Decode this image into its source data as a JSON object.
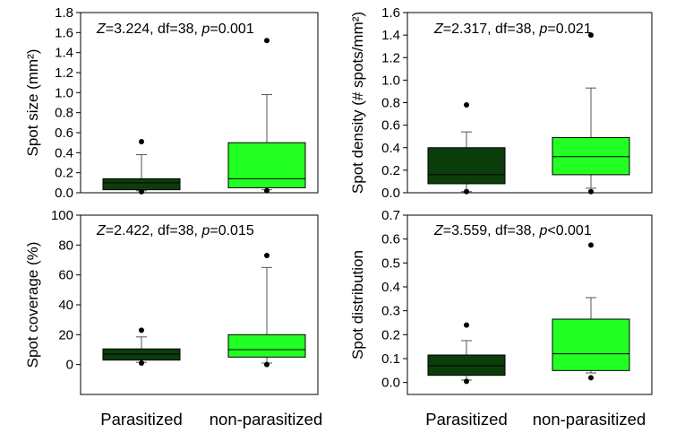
{
  "colors": {
    "parasitized": "#0b3d0b",
    "non_parasitized": "#22ff22",
    "frame": "#000000",
    "median": "#000000",
    "whisker": "#555555"
  },
  "chart_data": [
    {
      "type": "box",
      "ylabel": "Spot size (mm²)",
      "ylim": [
        0,
        1.8
      ],
      "yticks": [
        "0.0",
        "0.2",
        "0.4",
        "0.6",
        "0.8",
        "1.0",
        "1.2",
        "1.4",
        "1.6",
        "1.8"
      ],
      "stat_parts": [
        {
          "t": "Z",
          "it": true
        },
        {
          "t": "=3.224, df=38, ",
          "it": false
        },
        {
          "t": "p",
          "it": true
        },
        {
          "t": "=0.001",
          "it": false
        }
      ],
      "boxes": [
        {
          "name": "Parasitized",
          "q1": 0.03,
          "median": 0.1,
          "q3": 0.14,
          "wlo": 0.02,
          "whi": 0.38,
          "outliers": [
            0.51,
            0.01
          ]
        },
        {
          "name": "non-parasitized",
          "q1": 0.05,
          "median": 0.14,
          "q3": 0.5,
          "wlo": 0.03,
          "whi": 0.98,
          "outliers": [
            1.52,
            0.02
          ]
        }
      ]
    },
    {
      "type": "box",
      "ylabel": "Spot density (# spots/mm²)",
      "ylim": [
        0,
        1.6
      ],
      "yticks": [
        "0.0",
        "0.2",
        "0.4",
        "0.6",
        "0.8",
        "1.0",
        "1.2",
        "1.4",
        "1.6"
      ],
      "stat_parts": [
        {
          "t": "Z",
          "it": true
        },
        {
          "t": "=2.317, df=38, ",
          "it": false
        },
        {
          "t": "p",
          "it": true
        },
        {
          "t": "=0.021",
          "it": false
        }
      ],
      "boxes": [
        {
          "name": "Parasitized",
          "q1": 0.08,
          "median": 0.16,
          "q3": 0.4,
          "wlo": 0.01,
          "whi": 0.54,
          "outliers": [
            0.78,
            0.01
          ]
        },
        {
          "name": "non-parasitized",
          "q1": 0.16,
          "median": 0.32,
          "q3": 0.49,
          "wlo": 0.04,
          "whi": 0.93,
          "outliers": [
            1.4,
            0.01
          ]
        }
      ]
    },
    {
      "type": "box",
      "ylabel": "Spot coverage (%)",
      "ylim": [
        -20,
        100
      ],
      "yticks": [
        "0",
        "20",
        "40",
        "60",
        "80",
        "100"
      ],
      "stat_parts": [
        {
          "t": "Z",
          "it": true
        },
        {
          "t": "=2.422, df=38, ",
          "it": false
        },
        {
          "t": "p",
          "it": true
        },
        {
          "t": "=0.015",
          "it": false
        }
      ],
      "boxes": [
        {
          "name": "Parasitized",
          "q1": 3,
          "median": 7,
          "q3": 10.5,
          "wlo": 1.5,
          "whi": 18.5,
          "outliers": [
            23,
            1
          ]
        },
        {
          "name": "non-parasitized",
          "q1": 5,
          "median": 10,
          "q3": 20,
          "wlo": 1,
          "whi": 65,
          "outliers": [
            73,
            0
          ]
        }
      ]
    },
    {
      "type": "box",
      "ylabel": "Spot distribution",
      "ylim": [
        -0.05,
        0.7
      ],
      "yticks": [
        "0.0",
        "0.1",
        "0.2",
        "0.3",
        "0.4",
        "0.5",
        "0.6",
        "0.7"
      ],
      "stat_parts": [
        {
          "t": "Z",
          "it": true
        },
        {
          "t": "=3.559, df=38, ",
          "it": false
        },
        {
          "t": "p",
          "it": true
        },
        {
          "t": "<0.001",
          "it": false
        }
      ],
      "boxes": [
        {
          "name": "Parasitized",
          "q1": 0.03,
          "median": 0.07,
          "q3": 0.115,
          "wlo": 0.01,
          "whi": 0.175,
          "outliers": [
            0.24,
            0.005
          ]
        },
        {
          "name": "non-parasitized",
          "q1": 0.05,
          "median": 0.12,
          "q3": 0.265,
          "wlo": 0.04,
          "whi": 0.355,
          "outliers": [
            0.575,
            0.02
          ]
        }
      ]
    }
  ],
  "x_category_labels": [
    "Parasitized",
    "non-parasitized"
  ]
}
